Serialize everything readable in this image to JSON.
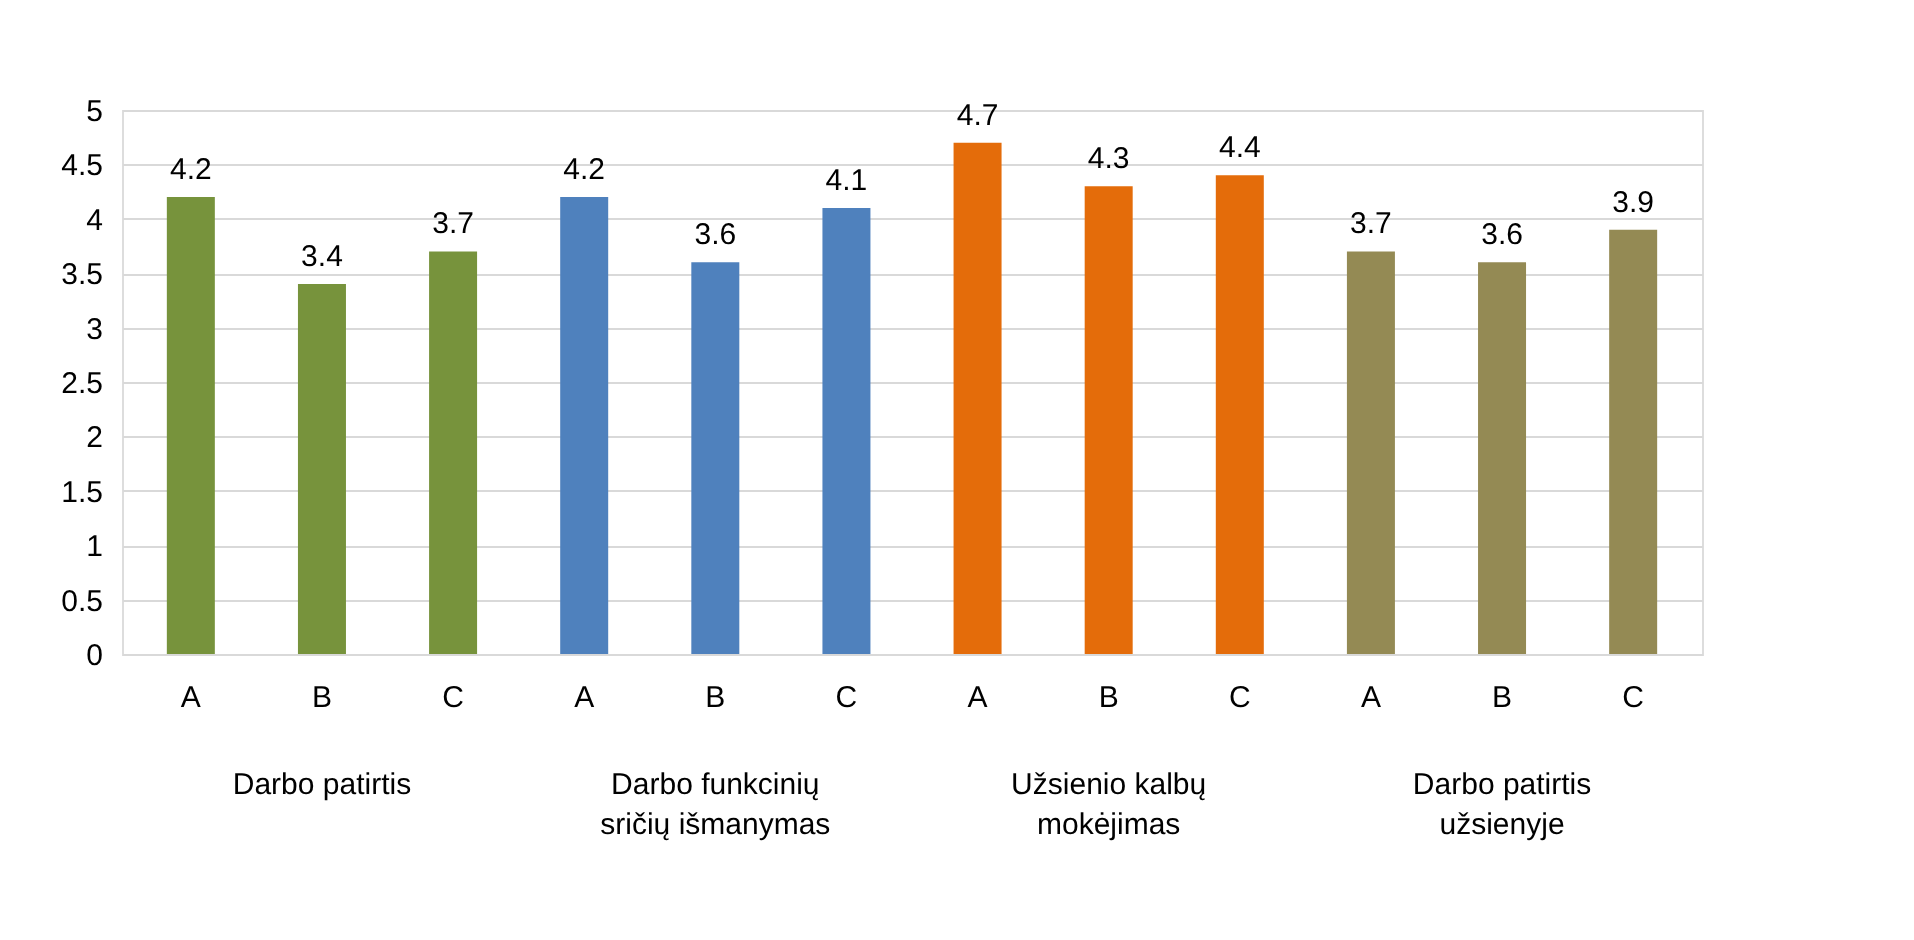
{
  "chart_data": {
    "type": "bar",
    "categories": [
      "A",
      "B",
      "C",
      "A",
      "B",
      "C",
      "A",
      "B",
      "C",
      "A",
      "B",
      "C"
    ],
    "values": [
      4.2,
      3.4,
      3.7,
      4.2,
      3.6,
      4.1,
      4.7,
      4.3,
      4.4,
      3.7,
      3.6,
      3.9
    ],
    "colors": [
      "#77933c",
      "#77933c",
      "#77933c",
      "#4f81bd",
      "#4f81bd",
      "#4f81bd",
      "#e46c0a",
      "#e46c0a",
      "#e46c0a",
      "#948a54",
      "#948a54",
      "#948a54"
    ],
    "ylim": [
      0,
      5
    ],
    "yticks": [
      0,
      0.5,
      1,
      1.5,
      2,
      2.5,
      3,
      3.5,
      4,
      4.5,
      5
    ],
    "grid": "y",
    "data_labels": true,
    "annotations": [
      "Darbo patirtis",
      "Darbo funkcinių\nsričių išmanymas",
      "Užsienio kalbų\nmokėjimas",
      "Darbo patirtis\nužsienyje"
    ]
  }
}
